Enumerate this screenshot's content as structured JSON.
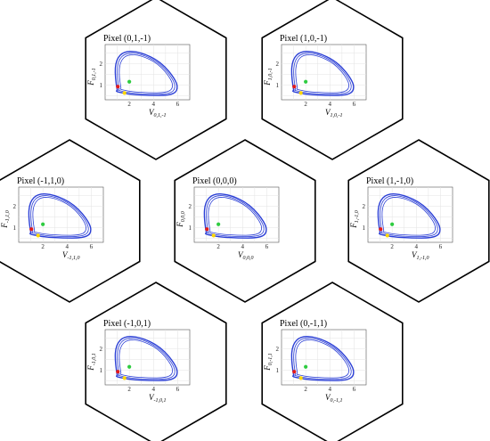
{
  "chart_data": [
    {
      "type": "line",
      "title": "Pixel (0,1,-1)",
      "xlabel": {
        "var": "V",
        "sub": "0,1,-1"
      },
      "ylabel": {
        "var": "F",
        "sub": "0,1,-1"
      },
      "xticks": [
        "2",
        "4",
        "6"
      ],
      "yticks": [
        "1",
        "2"
      ],
      "xlim": [
        0,
        7
      ],
      "ylim": [
        0.3,
        2.9
      ],
      "grid": true,
      "orbit": {
        "x": [
          1.0,
          0.8,
          0.9,
          1.6,
          2.9,
          4.6,
          5.9,
          6.0,
          5.3,
          3.6,
          2.1,
          1.2,
          0.9,
          1.0
        ],
        "y": [
          0.75,
          1.4,
          2.2,
          2.6,
          2.55,
          2.1,
          1.2,
          0.7,
          0.5,
          0.5,
          0.55,
          0.65,
          0.7,
          0.75
        ],
        "loops": 3
      },
      "points": [
        {
          "color": "#e31a1c",
          "x": 1.05,
          "y": 0.92
        },
        {
          "color": "#2ecc40",
          "x": 2.0,
          "y": 1.15
        },
        {
          "color": "#ffd700",
          "x": 1.6,
          "y": 0.62
        }
      ]
    },
    {
      "type": "line",
      "title": "Pixel (1,0,-1)",
      "xlabel": {
        "var": "V",
        "sub": "1,0,-1"
      },
      "ylabel": {
        "var": "F",
        "sub": "1,0,-1"
      },
      "xticks": [
        "2",
        "4",
        "6"
      ],
      "yticks": [
        "1",
        "2"
      ],
      "xlim": [
        0,
        7
      ],
      "ylim": [
        0.3,
        2.9
      ],
      "grid": true,
      "orbit": {
        "x": [
          1.0,
          0.8,
          0.9,
          1.6,
          2.9,
          4.6,
          5.9,
          6.0,
          5.3,
          3.6,
          2.1,
          1.2,
          0.9,
          1.0
        ],
        "y": [
          0.75,
          1.4,
          2.2,
          2.6,
          2.55,
          2.1,
          1.2,
          0.7,
          0.5,
          0.5,
          0.55,
          0.65,
          0.7,
          0.75
        ],
        "loops": 3
      },
      "points": [
        {
          "color": "#e31a1c",
          "x": 1.05,
          "y": 0.92
        },
        {
          "color": "#2ecc40",
          "x": 2.0,
          "y": 1.15
        },
        {
          "color": "#ffd700",
          "x": 1.6,
          "y": 0.62
        }
      ]
    },
    {
      "type": "line",
      "title": "Pixel (-1,1,0)",
      "xlabel": {
        "var": "V",
        "sub": "-1,1,0"
      },
      "ylabel": {
        "var": "F",
        "sub": "-1,1,0"
      },
      "xticks": [
        "2",
        "4",
        "6"
      ],
      "yticks": [
        "1",
        "2"
      ],
      "xlim": [
        0,
        7
      ],
      "ylim": [
        0.3,
        2.9
      ],
      "grid": true,
      "orbit": {
        "x": [
          1.0,
          0.8,
          0.9,
          1.6,
          2.9,
          4.6,
          5.9,
          6.0,
          5.3,
          3.6,
          2.1,
          1.2,
          0.9,
          1.0
        ],
        "y": [
          0.75,
          1.4,
          2.2,
          2.6,
          2.55,
          2.1,
          1.2,
          0.7,
          0.5,
          0.5,
          0.55,
          0.65,
          0.7,
          0.75
        ],
        "loops": 3
      },
      "points": [
        {
          "color": "#e31a1c",
          "x": 1.05,
          "y": 0.92
        },
        {
          "color": "#2ecc40",
          "x": 2.0,
          "y": 1.15
        },
        {
          "color": "#ffd700",
          "x": 1.6,
          "y": 0.62
        }
      ]
    },
    {
      "type": "line",
      "title": "Pixel (0,0,0)",
      "xlabel": {
        "var": "V",
        "sub": "0,0,0"
      },
      "ylabel": {
        "var": "F",
        "sub": "0,0,0"
      },
      "xticks": [
        "2",
        "4",
        "6"
      ],
      "yticks": [
        "1",
        "2"
      ],
      "xlim": [
        0,
        7
      ],
      "ylim": [
        0.3,
        2.9
      ],
      "grid": true,
      "orbit": {
        "x": [
          1.0,
          0.8,
          0.9,
          1.6,
          2.9,
          4.6,
          5.9,
          6.0,
          5.3,
          3.6,
          2.1,
          1.2,
          0.9,
          1.0
        ],
        "y": [
          0.75,
          1.4,
          2.2,
          2.6,
          2.55,
          2.1,
          1.2,
          0.7,
          0.5,
          0.5,
          0.55,
          0.65,
          0.7,
          0.75
        ],
        "loops": 3
      },
      "points": [
        {
          "color": "#e31a1c",
          "x": 1.05,
          "y": 0.92
        },
        {
          "color": "#2ecc40",
          "x": 2.0,
          "y": 1.15
        },
        {
          "color": "#ffd700",
          "x": 1.6,
          "y": 0.62
        }
      ]
    },
    {
      "type": "line",
      "title": "Pixel (1,-1,0)",
      "xlabel": {
        "var": "V",
        "sub": "1,-1,0"
      },
      "ylabel": {
        "var": "F",
        "sub": "1,-1,0"
      },
      "xticks": [
        "2",
        "4",
        "6"
      ],
      "yticks": [
        "1",
        "2"
      ],
      "xlim": [
        0,
        7
      ],
      "ylim": [
        0.3,
        2.9
      ],
      "grid": true,
      "orbit": {
        "x": [
          1.0,
          0.8,
          0.9,
          1.6,
          2.9,
          4.6,
          5.9,
          6.0,
          5.3,
          3.6,
          2.1,
          1.2,
          0.9,
          1.0
        ],
        "y": [
          0.75,
          1.4,
          2.2,
          2.6,
          2.55,
          2.1,
          1.2,
          0.7,
          0.5,
          0.5,
          0.55,
          0.65,
          0.7,
          0.75
        ],
        "loops": 3
      },
      "points": [
        {
          "color": "#e31a1c",
          "x": 1.05,
          "y": 0.92
        },
        {
          "color": "#2ecc40",
          "x": 2.0,
          "y": 1.15
        },
        {
          "color": "#ffd700",
          "x": 1.6,
          "y": 0.62
        }
      ]
    },
    {
      "type": "line",
      "title": "Pixel (-1,0,1)",
      "xlabel": {
        "var": "V",
        "sub": "-1,0,1"
      },
      "ylabel": {
        "var": "F",
        "sub": "-1,0,1"
      },
      "xticks": [
        "2",
        "4",
        "6"
      ],
      "yticks": [
        "1",
        "2"
      ],
      "xlim": [
        0,
        7
      ],
      "ylim": [
        0.3,
        2.9
      ],
      "grid": true,
      "orbit": {
        "x": [
          1.0,
          0.8,
          0.9,
          1.6,
          2.9,
          4.6,
          5.9,
          6.0,
          5.3,
          3.6,
          2.1,
          1.2,
          0.9,
          1.0
        ],
        "y": [
          0.75,
          1.4,
          2.2,
          2.6,
          2.55,
          2.1,
          1.2,
          0.7,
          0.5,
          0.5,
          0.55,
          0.65,
          0.7,
          0.75
        ],
        "loops": 3
      },
      "points": [
        {
          "color": "#e31a1c",
          "x": 1.05,
          "y": 0.92
        },
        {
          "color": "#2ecc40",
          "x": 2.0,
          "y": 1.15
        },
        {
          "color": "#ffd700",
          "x": 1.6,
          "y": 0.62
        }
      ]
    },
    {
      "type": "line",
      "title": "Pixel (0,-1,1)",
      "xlabel": {
        "var": "V",
        "sub": "0,-1,1"
      },
      "ylabel": {
        "var": "F",
        "sub": "0,-1,1"
      },
      "xticks": [
        "2",
        "4",
        "6"
      ],
      "yticks": [
        "1",
        "2"
      ],
      "xlim": [
        0,
        7
      ],
      "ylim": [
        0.3,
        2.9
      ],
      "grid": true,
      "orbit": {
        "x": [
          1.0,
          0.8,
          0.9,
          1.6,
          2.9,
          4.6,
          5.9,
          6.0,
          5.3,
          3.6,
          2.1,
          1.2,
          0.9,
          1.0
        ],
        "y": [
          0.75,
          1.4,
          2.2,
          2.6,
          2.55,
          2.1,
          1.2,
          0.7,
          0.5,
          0.5,
          0.55,
          0.65,
          0.7,
          0.75
        ],
        "loops": 3
      },
      "points": [
        {
          "color": "#e31a1c",
          "x": 1.05,
          "y": 0.92
        },
        {
          "color": "#2ecc40",
          "x": 2.0,
          "y": 1.15
        },
        {
          "color": "#ffd700",
          "x": 1.6,
          "y": 0.62
        }
      ]
    }
  ],
  "colors": {
    "orbit": "#2b3fd6",
    "hexagon_stroke": "#000000"
  }
}
